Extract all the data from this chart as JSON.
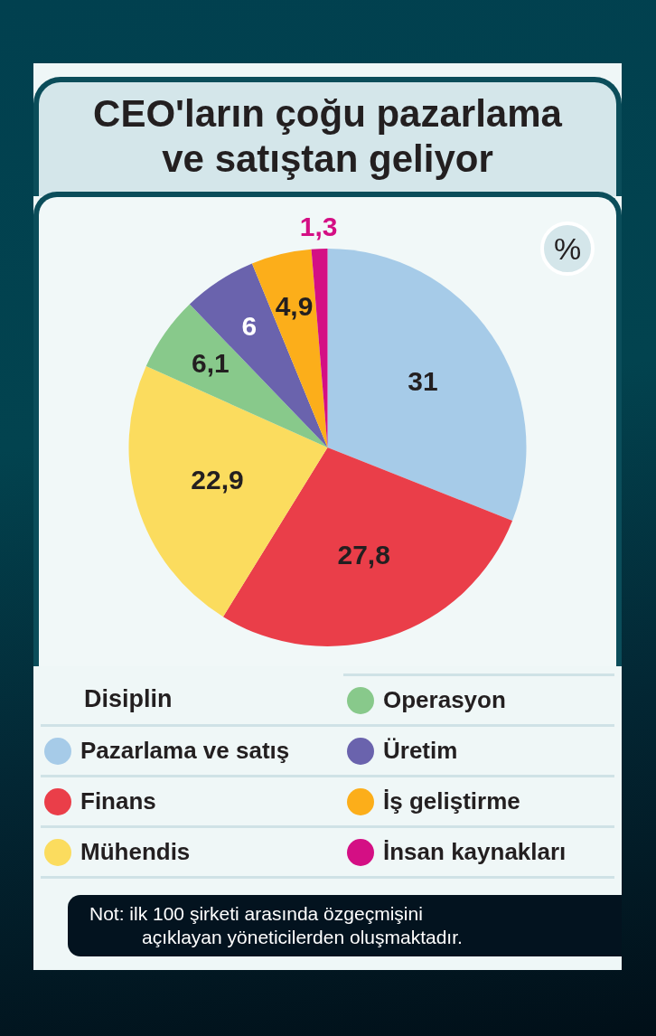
{
  "chart_data": {
    "type": "pie",
    "title": "CEO'ların çoğu pazarlama ve satıştan geliyor",
    "legend_title": "Disiplin",
    "categories": [
      "Pazarlama ve satış",
      "Finans",
      "Mühendis",
      "Operasyon",
      "Üretim",
      "İş geliştirme",
      "İnsan kaynakları"
    ],
    "values": [
      31,
      27.8,
      22.9,
      6.1,
      6,
      4.9,
      1.3
    ],
    "colors": [
      "#a6cbe8",
      "#ea3e49",
      "#fbdc5e",
      "#88c98b",
      "#6a63ad",
      "#fcae1a",
      "#d40f84"
    ],
    "value_labels": [
      "31",
      "27,8",
      "22,9",
      "6,1",
      "6",
      "4,9",
      "1,3"
    ],
    "legend": "bottom",
    "annotations": [
      "%",
      "Not: ilk 100 şirketi arasında özgeçmişini açıklayan yöneticilerden oluşmaktadır."
    ]
  }
}
